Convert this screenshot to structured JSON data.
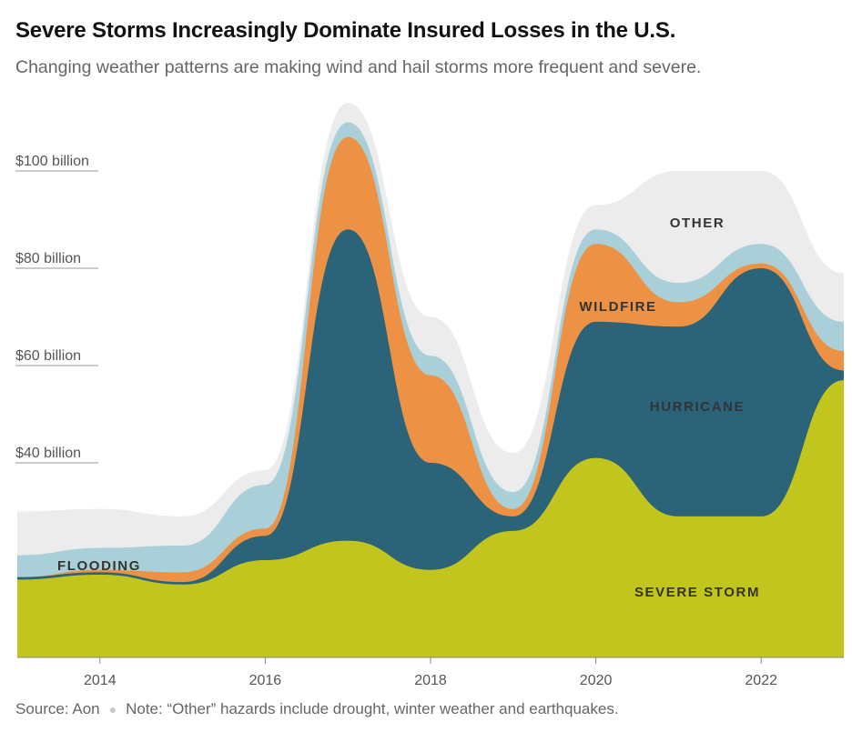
{
  "header": {
    "title": "Severe Storms Increasingly Dominate Insured Losses in the U.S.",
    "subtitle": "Changing weather patterns are making wind and hail storms more frequent and severe."
  },
  "footer": {
    "source": "Source: Aon",
    "note": "Note: “Other” hazards include drought, winter weather and earthquakes."
  },
  "chart_data": {
    "type": "area",
    "stacked": true,
    "x": [
      2013,
      2014,
      2015,
      2016,
      2017,
      2018,
      2019,
      2020,
      2021,
      2022,
      2023
    ],
    "x_ticks": [
      "2014",
      "2016",
      "2018",
      "2020",
      "2022"
    ],
    "y_ticks": [
      "$40 billion",
      "$60 billion",
      "$80 billion",
      "$100 billion"
    ],
    "y_tick_values": [
      40,
      60,
      80,
      100
    ],
    "ylim": [
      0,
      115
    ],
    "xlim": [
      2013,
      2023
    ],
    "grid": false,
    "series": [
      {
        "name": "SEVERE STORM",
        "color": "#c1c51e",
        "values": [
          16,
          17,
          15,
          20,
          24,
          18,
          26,
          41,
          29,
          29,
          57
        ]
      },
      {
        "name": "HURRICANE",
        "color": "#2b6378",
        "values": [
          0.5,
          0.5,
          0.5,
          5,
          64,
          22,
          3,
          28,
          39,
          51,
          2
        ]
      },
      {
        "name": "WILDFIRE",
        "color": "#ed9244",
        "values": [
          0,
          0.5,
          2,
          1.5,
          19,
          18,
          1.5,
          16,
          5,
          1,
          4
        ]
      },
      {
        "name": "FLOODING",
        "color": "#a9d0d8",
        "values": [
          4.5,
          4.5,
          5.5,
          9,
          3,
          4,
          3.5,
          3,
          4,
          4,
          6
        ]
      },
      {
        "name": "OTHER",
        "color": "#ececec",
        "values": [
          9,
          8,
          6,
          3,
          4,
          8,
          8,
          5,
          23,
          15,
          10
        ]
      }
    ],
    "series_labels": [
      "SEVERE STORM",
      "HURRICANE",
      "WILDFIRE",
      "FLOODING",
      "OTHER"
    ]
  }
}
